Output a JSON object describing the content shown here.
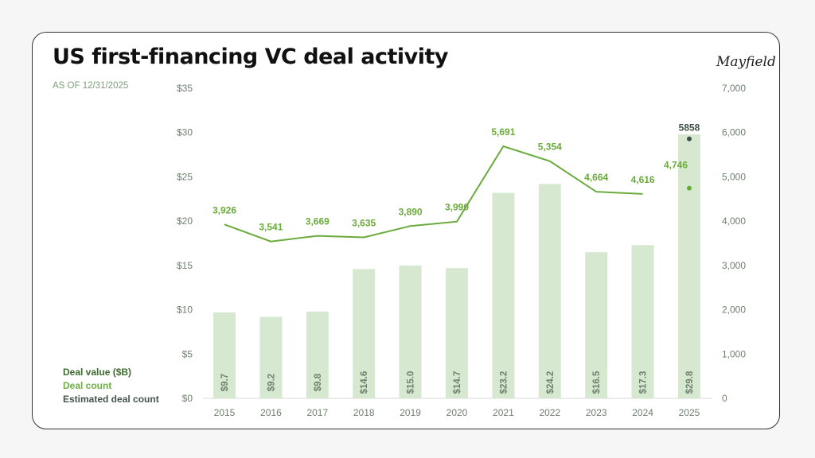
{
  "title": "US first-financing VC deal activity",
  "subtitle": "AS OF 12/31/2025",
  "logo": "Mayfield",
  "colors": {
    "bar": "#d6e9d0",
    "bar_label": "#6f7f6f",
    "line": "#6aab3c",
    "count_label": "#6aab3c",
    "estimate": "#3f4f45",
    "axis_text": "#6f7f6f",
    "legend_value": "#3d6b2f",
    "legend_count": "#70ad47",
    "legend_estimate": "#44544a"
  },
  "legend": [
    "Deal value ($B)",
    "Deal count",
    "Estimated deal count"
  ],
  "chart_data": {
    "type": "bar+line",
    "categories": [
      "2015",
      "2016",
      "2017",
      "2018",
      "2019",
      "2020",
      "2021",
      "2022",
      "2023",
      "2024",
      "2025"
    ],
    "series": [
      {
        "name": "Deal value ($B)",
        "type": "bar",
        "axis": "left",
        "values": [
          9.7,
          9.2,
          9.8,
          14.6,
          15.0,
          14.7,
          23.2,
          24.2,
          16.5,
          17.3,
          29.8
        ],
        "labels": [
          "$9.7",
          "$9.2",
          "$9.8",
          "$14.6",
          "$15.0",
          "$14.7",
          "$23.2",
          "$24.2",
          "$16.5",
          "$17.3",
          "$29.8"
        ]
      },
      {
        "name": "Deal count",
        "type": "line",
        "axis": "right",
        "values": [
          3926,
          3541,
          3669,
          3635,
          3890,
          3990,
          5691,
          5354,
          4664,
          4616,
          4746
        ],
        "labels": [
          "3,926",
          "3,541",
          "3,669",
          "3,635",
          "3,890",
          "3,990",
          "5,691",
          "5,354",
          "4,664",
          "4,616",
          "4,746"
        ]
      },
      {
        "name": "Estimated deal count",
        "type": "point",
        "axis": "right",
        "values": [
          null,
          null,
          null,
          null,
          null,
          null,
          null,
          null,
          null,
          null,
          5858
        ],
        "labels": [
          "",
          "",
          "",
          "",
          "",
          "",
          "",
          "",
          "",
          "",
          "5858"
        ]
      }
    ],
    "left_axis": {
      "range": [
        0,
        35
      ],
      "ticks": [
        "$0",
        "$5",
        "$10",
        "$15",
        "$20",
        "$25",
        "$30",
        "$35"
      ]
    },
    "right_axis": {
      "range": [
        0,
        7000
      ],
      "ticks": [
        "0",
        "1,000",
        "2,000",
        "3,000",
        "4,000",
        "5,000",
        "6,000",
        "7,000"
      ]
    },
    "grid": false,
    "legend_position": "bottom-left"
  }
}
